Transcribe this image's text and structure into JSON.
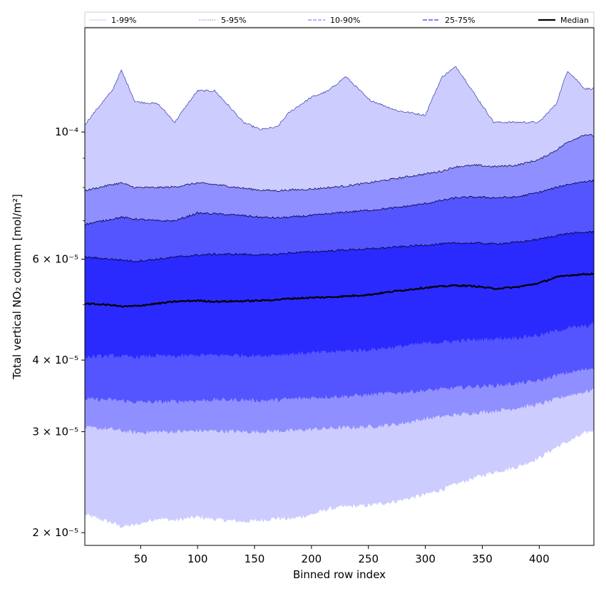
{
  "chart_data": {
    "type": "area",
    "xlabel": "Binned row index",
    "ylabel": "Total vertical NO₂ column [mol/m²]",
    "yscale": "log",
    "xlim": [
      1,
      448
    ],
    "ylim": [
      1.9e-05,
      0.000152
    ],
    "x_ticks": [
      50,
      100,
      150,
      200,
      250,
      300,
      350,
      400
    ],
    "y_ticks": [
      {
        "value": 2e-05,
        "label": "2 × 10⁻⁵"
      },
      {
        "value": 3e-05,
        "label": "3 × 10⁻⁵"
      },
      {
        "value": 4e-05,
        "label": "4 × 10⁻⁵"
      },
      {
        "value": 6e-05,
        "label": "6 × 10⁻⁵"
      },
      {
        "value": 0.0001,
        "label": "10⁻⁴"
      }
    ],
    "legend": {
      "placement": "top",
      "entries": [
        "1-99%",
        "5-95%",
        "10-90%",
        "25-75%",
        "Median"
      ]
    },
    "x": [
      1,
      25,
      33,
      45,
      65,
      80,
      100,
      115,
      140,
      155,
      170,
      180,
      200,
      215,
      230,
      250,
      275,
      300,
      315,
      327,
      345,
      360,
      380,
      400,
      415,
      425,
      440,
      448
    ],
    "bands": [
      {
        "name": "1-99%",
        "color": "#ccccff",
        "lower": [
          2.15e-05,
          2.08e-05,
          2.05e-05,
          2.06e-05,
          2.12e-05,
          2.1e-05,
          2.13e-05,
          2.11e-05,
          2.09e-05,
          2.1e-05,
          2.12e-05,
          2.11e-05,
          2.15e-05,
          2.2e-05,
          2.22e-05,
          2.23e-05,
          2.27e-05,
          2.33e-05,
          2.38e-05,
          2.43e-05,
          2.5e-05,
          2.55e-05,
          2.6e-05,
          2.7e-05,
          2.82e-05,
          2.88e-05,
          2.98e-05,
          3.02e-05
        ],
        "upper": [
          0.000103,
          0.000118,
          0.000128,
          0.000113,
          0.000112,
          0.000104,
          0.000118,
          0.000118,
          0.000104,
          0.000101,
          0.000102,
          0.000108,
          0.000115,
          0.000118,
          0.000125,
          0.000114,
          0.000109,
          0.000107,
          0.000125,
          0.00013,
          0.000115,
          0.000104,
          0.000104,
          0.000104,
          0.000112,
          0.000128,
          0.000119,
          0.000119
        ]
      },
      {
        "name": "5-95%",
        "color": "#8f8fff",
        "lower": [
          3.05e-05,
          3.03e-05,
          3.01e-05,
          2.99e-05,
          3e-05,
          3e-05,
          3.01e-05,
          3.01e-05,
          3e-05,
          3e-05,
          3.01e-05,
          3.01e-05,
          3.03e-05,
          3.04e-05,
          3.05e-05,
          3.06e-05,
          3.09e-05,
          3.16e-05,
          3.19e-05,
          3.21e-05,
          3.24e-05,
          3.26e-05,
          3.3e-05,
          3.35e-05,
          3.42e-05,
          3.47e-05,
          3.52e-05,
          3.55e-05
        ],
        "upper": [
          7.9e-05,
          8.1e-05,
          8.15e-05,
          8e-05,
          8e-05,
          8.02e-05,
          8.15e-05,
          8.1e-05,
          7.98e-05,
          7.92e-05,
          7.9e-05,
          7.92e-05,
          7.95e-05,
          8e-05,
          8.05e-05,
          8.15e-05,
          8.3e-05,
          8.45e-05,
          8.55e-05,
          8.7e-05,
          8.75e-05,
          8.7e-05,
          8.75e-05,
          8.95e-05,
          9.3e-05,
          9.6e-05,
          9.9e-05,
          9.85e-05
        ]
      },
      {
        "name": "10-90%",
        "color": "#5555ff",
        "lower": [
          3.42e-05,
          3.41e-05,
          3.4e-05,
          3.38e-05,
          3.38e-05,
          3.39e-05,
          3.4e-05,
          3.41e-05,
          3.41e-05,
          3.4e-05,
          3.41e-05,
          3.42e-05,
          3.44e-05,
          3.45e-05,
          3.46e-05,
          3.48e-05,
          3.51e-05,
          3.54e-05,
          3.56e-05,
          3.58e-05,
          3.6e-05,
          3.61e-05,
          3.64e-05,
          3.68e-05,
          3.76e-05,
          3.8e-05,
          3.85e-05,
          3.88e-05
        ],
        "upper": [
          6.9e-05,
          7.05e-05,
          7.1e-05,
          7.05e-05,
          7e-05,
          7e-05,
          7.22e-05,
          7.2e-05,
          7.15e-05,
          7.1e-05,
          7.08e-05,
          7.1e-05,
          7.15e-05,
          7.2e-05,
          7.25e-05,
          7.3e-05,
          7.38e-05,
          7.5e-05,
          7.6e-05,
          7.68e-05,
          7.7e-05,
          7.68e-05,
          7.7e-05,
          7.85e-05,
          8e-05,
          8.1e-05,
          8.2e-05,
          8.22e-05
        ]
      },
      {
        "name": "25-75%",
        "color": "#2a2aff",
        "lower": [
          4.05e-05,
          4.07e-05,
          4.06e-05,
          4.05e-05,
          4.07e-05,
          4.06e-05,
          4.08e-05,
          4.08e-05,
          4.08e-05,
          4.07e-05,
          4.09e-05,
          4.1e-05,
          4.12e-05,
          4.13e-05,
          4.15e-05,
          4.17e-05,
          4.22e-05,
          4.28e-05,
          4.3e-05,
          4.32e-05,
          4.34e-05,
          4.36e-05,
          4.38e-05,
          4.42e-05,
          4.5e-05,
          4.55e-05,
          4.58e-05,
          4.62e-05
        ],
        "upper": [
          6.05e-05,
          6e-05,
          5.98e-05,
          5.95e-05,
          6e-05,
          6.05e-05,
          6.1e-05,
          6.12e-05,
          6.12e-05,
          6.1e-05,
          6.12e-05,
          6.15e-05,
          6.18e-05,
          6.2e-05,
          6.23e-05,
          6.25e-05,
          6.3e-05,
          6.35e-05,
          6.38e-05,
          6.4e-05,
          6.4e-05,
          6.38e-05,
          6.42e-05,
          6.5e-05,
          6.6e-05,
          6.65e-05,
          6.68e-05,
          6.7e-05
        ]
      }
    ],
    "series": [
      {
        "name": "Median",
        "color": "#000000",
        "values": [
          5.02e-05,
          4.99e-05,
          4.96e-05,
          4.97e-05,
          5.02e-05,
          5.06e-05,
          5.08e-05,
          5.06e-05,
          5.07e-05,
          5.08e-05,
          5.1e-05,
          5.12e-05,
          5.14e-05,
          5.15e-05,
          5.17e-05,
          5.2e-05,
          5.28e-05,
          5.35e-05,
          5.38e-05,
          5.4e-05,
          5.38e-05,
          5.33e-05,
          5.36e-05,
          5.45e-05,
          5.58e-05,
          5.62e-05,
          5.65e-05,
          5.66e-05
        ]
      }
    ]
  }
}
